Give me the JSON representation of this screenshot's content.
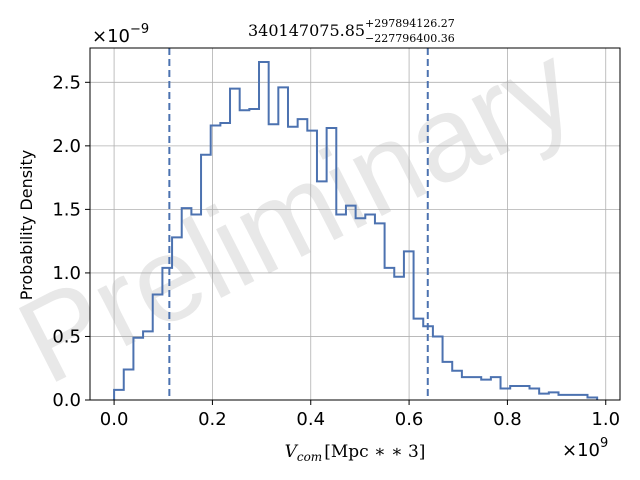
{
  "chart_data": {
    "type": "bar",
    "title": {
      "main": "340147075.85",
      "sup": "+297894126.27",
      "sub": "−227796400.36"
    },
    "xlabel": {
      "var": "V",
      "subscript": "com",
      "unit": "[Mpc ∗ ∗ 3]"
    },
    "ylabel": "Probability Density",
    "x_multiplier": {
      "base": "×10",
      "exp": "9"
    },
    "y_multiplier": {
      "base": "×10",
      "exp": "−9"
    },
    "watermark": "Preliminary",
    "xlim": [
      -0.049,
      1.029
    ],
    "ylim": [
      0,
      2.77
    ],
    "x_ticks": [
      {
        "value": 0.0,
        "label": "0.0"
      },
      {
        "value": 0.2,
        "label": "0.2"
      },
      {
        "value": 0.4,
        "label": "0.4"
      },
      {
        "value": 0.6,
        "label": "0.6"
      },
      {
        "value": 0.8,
        "label": "0.8"
      },
      {
        "value": 1.0,
        "label": "1.0"
      }
    ],
    "y_ticks": [
      {
        "value": 0.0,
        "label": "0.0"
      },
      {
        "value": 0.5,
        "label": "0.5"
      },
      {
        "value": 1.0,
        "label": "1.0"
      },
      {
        "value": 1.5,
        "label": "1.5"
      },
      {
        "value": 2.0,
        "label": "2.0"
      },
      {
        "value": 2.5,
        "label": "2.5"
      }
    ],
    "grid": true,
    "vlines": [
      0.1124,
      0.638
    ],
    "bin_edges": [
      0.0,
      0.01965,
      0.0393,
      0.05895,
      0.0786,
      0.09825,
      0.1179,
      0.13755,
      0.1572,
      0.17685,
      0.1965,
      0.21615,
      0.2358,
      0.25545,
      0.2751,
      0.29475,
      0.3144,
      0.33405,
      0.3537,
      0.37335,
      0.393,
      0.41265,
      0.4323,
      0.45195,
      0.4716,
      0.49125,
      0.5109,
      0.53055,
      0.5502,
      0.56985,
      0.5895,
      0.60915,
      0.6288,
      0.64845,
      0.6681,
      0.68775,
      0.7074,
      0.72705,
      0.7467,
      0.76635,
      0.786,
      0.80565,
      0.8253,
      0.84495,
      0.8646,
      0.88425,
      0.9039,
      0.92355,
      0.9432,
      0.96285,
      0.9825
    ],
    "values": [
      0.08,
      0.24,
      0.49,
      0.54,
      0.83,
      1.04,
      1.28,
      1.51,
      1.46,
      1.93,
      2.16,
      2.18,
      2.45,
      2.28,
      2.29,
      2.66,
      2.17,
      2.46,
      2.15,
      2.21,
      2.12,
      1.72,
      2.14,
      1.46,
      1.53,
      1.43,
      1.46,
      1.39,
      1.04,
      0.97,
      1.17,
      0.64,
      0.58,
      0.5,
      0.3,
      0.23,
      0.18,
      0.18,
      0.16,
      0.18,
      0.09,
      0.11,
      0.11,
      0.09,
      0.05,
      0.06,
      0.04,
      0.04,
      0.04,
      0.02
    ],
    "colors": {
      "line": "#4c72b0",
      "grid": "#b0b0b0",
      "watermark": "#e8e8e8"
    }
  }
}
